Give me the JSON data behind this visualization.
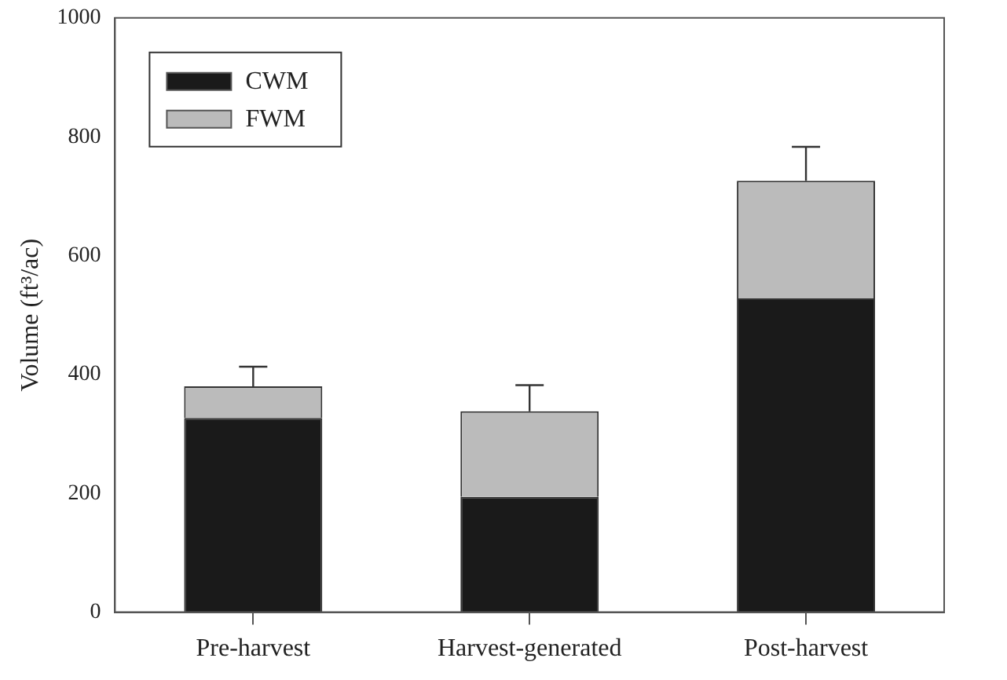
{
  "chart_data": {
    "type": "bar",
    "ylabel": "Volume (ft³/ac)",
    "categories": [
      "Pre-harvest",
      "Harvest-generated",
      "Post-harvest"
    ],
    "stacked": true,
    "series": [
      {
        "name": "CWM",
        "color": "#1a1a1a",
        "values": [
          327,
          194,
          528
        ]
      },
      {
        "name": "FWM",
        "color": "#bbbbbb",
        "values": [
          53,
          144,
          198
        ],
        "errors": [
          [
            380,
            413
          ],
          [
            338,
            382
          ],
          [
            726,
            783
          ]
        ]
      }
    ],
    "ylim": [
      0,
      1000
    ],
    "yticks": [
      0,
      200,
      400,
      600,
      800,
      1000
    ],
    "grid": false,
    "legend": "top left"
  }
}
